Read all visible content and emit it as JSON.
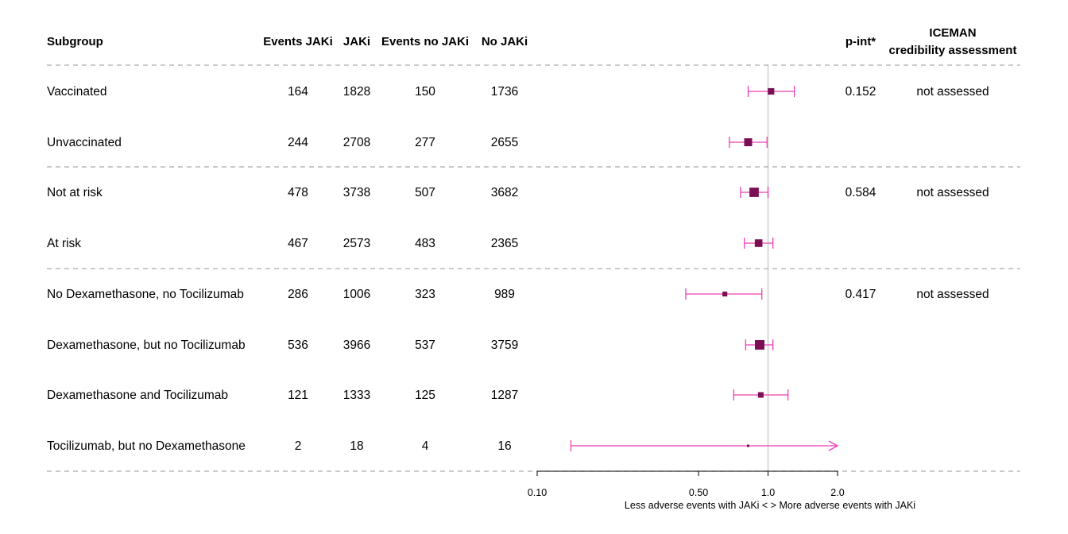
{
  "chart_data": {
    "type": "forest",
    "headers": {
      "subgroup": "Subgroup",
      "events_jaki": "Events JAKi",
      "jaki": "JAKi",
      "events_no_jaki": "Events no JAKi",
      "no_jaki": "No JAKi",
      "p_int": "p-int*",
      "iceman_line1": "ICEMAN",
      "iceman_line2": "credibility assessment"
    },
    "rows": [
      {
        "subgroup": "Vaccinated",
        "events_jaki": "164",
        "jaki": "1828",
        "events_no_jaki": "150",
        "no_jaki": "1736",
        "estimate": 1.03,
        "lower": 0.82,
        "upper": 1.3,
        "p_int": "0.152",
        "iceman": "not assessed"
      },
      {
        "subgroup": "Unvaccinated",
        "events_jaki": "244",
        "jaki": "2708",
        "events_no_jaki": "277",
        "no_jaki": "2655",
        "estimate": 0.82,
        "lower": 0.68,
        "upper": 0.99,
        "p_int": "",
        "iceman": ""
      },
      {
        "subgroup": "Not at risk",
        "events_jaki": "478",
        "jaki": "3738",
        "events_no_jaki": "507",
        "no_jaki": "3682",
        "estimate": 0.87,
        "lower": 0.76,
        "upper": 1.0,
        "p_int": "0.584",
        "iceman": "not assessed"
      },
      {
        "subgroup": "At risk",
        "events_jaki": "467",
        "jaki": "2573",
        "events_no_jaki": "483",
        "no_jaki": "2365",
        "estimate": 0.91,
        "lower": 0.79,
        "upper": 1.05,
        "p_int": "",
        "iceman": ""
      },
      {
        "subgroup": "No Dexamethasone, no Tocilizumab",
        "events_jaki": "286",
        "jaki": "1006",
        "events_no_jaki": "323",
        "no_jaki": "989",
        "estimate": 0.65,
        "lower": 0.44,
        "upper": 0.94,
        "p_int": "0.417",
        "iceman": "not assessed"
      },
      {
        "subgroup": "Dexamethasone, but no Tocilizumab",
        "events_jaki": "536",
        "jaki": "3966",
        "events_no_jaki": "537",
        "no_jaki": "3759",
        "estimate": 0.92,
        "lower": 0.8,
        "upper": 1.05,
        "p_int": "",
        "iceman": ""
      },
      {
        "subgroup": "Dexamethasone and Tocilizumab",
        "events_jaki": "121",
        "jaki": "1333",
        "events_no_jaki": "125",
        "no_jaki": "1287",
        "estimate": 0.93,
        "lower": 0.71,
        "upper": 1.22,
        "p_int": "",
        "iceman": ""
      },
      {
        "subgroup": "Tocilizumab, but no Dexamethasone",
        "events_jaki": "2",
        "jaki": "18",
        "events_no_jaki": "4",
        "no_jaki": "16",
        "estimate": 0.82,
        "lower": 0.14,
        "upper": 2.0,
        "upper_truncated": true,
        "p_int": "",
        "iceman": ""
      }
    ],
    "groups": [
      [
        0,
        1
      ],
      [
        2,
        3
      ],
      [
        4,
        5,
        6,
        7
      ]
    ],
    "x_scale": "log",
    "xlim": [
      0.1,
      2.0
    ],
    "x_ticks": [
      "0.10",
      "0.50",
      "1.0",
      "2.0"
    ],
    "x_tick_values": [
      0.1,
      0.5,
      1.0,
      2.0
    ],
    "reference_line": 1.0,
    "xlabel": "Less adverse events with JAKi < > More adverse events with JAKi",
    "colors": {
      "point": "#7a0f54",
      "ci": "#ee3fb4",
      "reference": "#d9d9d9",
      "divider": "#aaaaaa"
    }
  }
}
